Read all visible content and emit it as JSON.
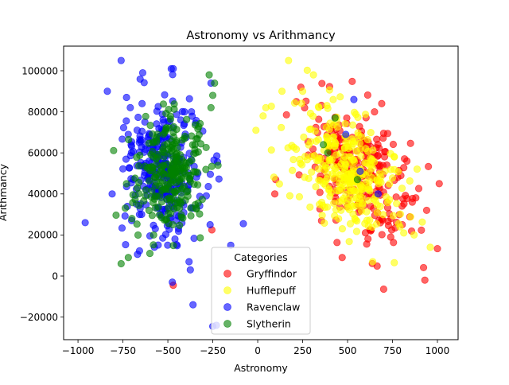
{
  "chart_data": {
    "type": "scatter",
    "title": "Astronomy vs Arithmancy",
    "xlabel": "Astronomy",
    "ylabel": "Arithmancy",
    "xlim": [
      -1080,
      1115
    ],
    "ylim": [
      -31000,
      112000
    ],
    "xticks": [
      -1000,
      -750,
      -500,
      -250,
      0,
      250,
      500,
      750,
      1000
    ],
    "yticks": [
      -20000,
      0,
      20000,
      40000,
      60000,
      80000,
      100000
    ],
    "grid": false,
    "legend": {
      "title": "Categories",
      "placement": "lower center"
    },
    "point_alpha": 0.6,
    "series": [
      {
        "name": "Gryffindor",
        "color": "#ff0000",
        "distribution": {
          "x_mean": 560,
          "x_sd": 150,
          "y_mean": 50000,
          "y_sd": 14000,
          "count": 240
        },
        "points": [
          [
            1010,
            45000
          ],
          [
            940,
            32000
          ],
          [
            930,
            -2000
          ],
          [
            860,
            36000
          ],
          [
            690,
            84000
          ],
          [
            650,
            80000
          ],
          [
            240,
            92000
          ],
          [
            215,
            85000
          ],
          [
            100,
            47000
          ],
          [
            95,
            40000
          ],
          [
            -470,
            -4500
          ],
          [
            -255,
            22500
          ],
          [
            830,
            56000
          ],
          [
            740,
            19000
          ],
          [
            470,
            9000
          ]
        ]
      },
      {
        "name": "Hufflepuff",
        "color": "#ffff00",
        "distribution": {
          "x_mean": 500,
          "x_sd": 140,
          "y_mean": 50000,
          "y_sd": 13000,
          "count": 300
        },
        "points": [
          [
            310,
            98000
          ],
          [
            135,
            90000
          ],
          [
            45,
            82000
          ],
          [
            -10,
            71000
          ],
          [
            30,
            78000
          ],
          [
            960,
            14000
          ],
          [
            870,
            20000
          ],
          [
            760,
            6500
          ],
          [
            640,
            7000
          ],
          [
            420,
            86000
          ],
          [
            250,
            90000
          ]
        ]
      },
      {
        "name": "Ravenclaw",
        "color": "#0000ff",
        "distribution": {
          "x_mean": -520,
          "x_sd": 120,
          "y_mean": 52000,
          "y_sd": 18000,
          "count": 300
        },
        "points": [
          [
            -760,
            105000
          ],
          [
            -470,
            101000
          ],
          [
            -640,
            99000
          ],
          [
            -260,
            94000
          ],
          [
            -960,
            26000
          ],
          [
            -810,
            40000
          ],
          [
            -80,
            25500
          ],
          [
            -150,
            15000
          ],
          [
            -375,
            3000
          ],
          [
            -475,
            -3000
          ],
          [
            -360,
            -14000
          ],
          [
            -250,
            -24500
          ],
          [
            -230,
            -24000
          ],
          [
            -265,
            25000
          ],
          [
            -730,
            87000
          ],
          [
            535,
            86000
          ],
          [
            490,
            69000
          ],
          [
            570,
            51000
          ],
          [
            670,
            40000
          ]
        ]
      },
      {
        "name": "Slytherin",
        "color": "#008000",
        "distribution": {
          "x_mean": -490,
          "x_sd": 90,
          "y_mean": 50000,
          "y_sd": 13000,
          "count": 260
        },
        "points": [
          [
            -270,
            98000
          ],
          [
            -240,
            94000
          ],
          [
            -760,
            6000
          ],
          [
            -720,
            9000
          ],
          [
            -600,
            11000
          ],
          [
            -700,
            28000
          ],
          [
            -250,
            88000
          ],
          [
            -260,
            82000
          ],
          [
            430,
            77000
          ],
          [
            365,
            64000
          ],
          [
            555,
            47000
          ],
          [
            390,
            60000
          ]
        ]
      }
    ]
  }
}
